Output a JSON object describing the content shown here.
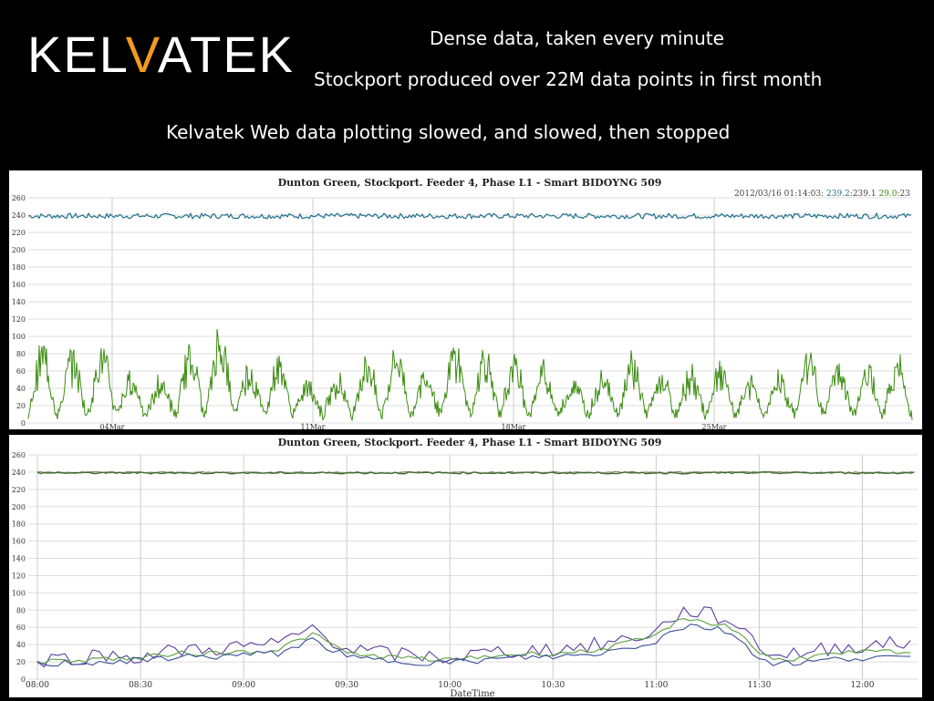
{
  "logo": {
    "prefix": "KEL",
    "accent": "V",
    "rest_a": "A",
    "suffix": "TEK",
    "accent_color": "#f39a1e"
  },
  "headlines": {
    "line1": "Dense data, taken every minute",
    "line2": "Stockport produced over 22M data points in first month",
    "line3": "Kelvatek Web data plotting slowed, and slowed, then stopped"
  },
  "chart_data": [
    {
      "type": "line",
      "title": "Dunton Green, Stockport. Feeder 4, Phase L1 - Smart BIDOYNG 509",
      "legend_text": {
        "stamp": "2012/03/16 01:14:03:",
        "v1": "239.2",
        "v2": "239.1",
        "v3": "29.0",
        "v4": "23"
      },
      "ylim": [
        0,
        260
      ],
      "yticks": [
        0,
        20,
        40,
        60,
        80,
        100,
        120,
        140,
        160,
        180,
        200,
        220,
        240,
        260
      ],
      "xticks": [
        "04Mar",
        "11Mar",
        "18Mar",
        "25Mar"
      ],
      "grid": true,
      "colors": {
        "voltage": "#1f6f8b",
        "current": "#3c8c10"
      },
      "series": [
        {
          "key": "voltage",
          "approx_level": 239,
          "noise": 3
        },
        {
          "key": "current",
          "baseline": 10,
          "daily_peaks": [
            97,
            90,
            95,
            60,
            55,
            98,
            120,
            75,
            80,
            55,
            60,
            85,
            95,
            70,
            100,
            95,
            80,
            70,
            55,
            65,
            85,
            60,
            65,
            70,
            55,
            60,
            90,
            75,
            70,
            80
          ]
        }
      ]
    },
    {
      "type": "line",
      "title": "Dunton Green, Stockport. Feeder 4, Phase L1 - Smart BIDOYNG 509",
      "xlabel": "DateTime",
      "ylim": [
        0,
        260
      ],
      "yticks": [
        0,
        20,
        40,
        60,
        80,
        100,
        120,
        140,
        160,
        180,
        200,
        220,
        240,
        260
      ],
      "xticks": [
        "08:00",
        "08:30",
        "09:00",
        "09:30",
        "10:00",
        "10:30",
        "11:00",
        "11:30",
        "12:00"
      ],
      "grid": true,
      "colors": {
        "volt_a": "#3e6b2c",
        "volt_b": "#8a8a6a",
        "purple": "#5b3fa0",
        "green": "#5aa03c",
        "blue": "#3a4f9a"
      },
      "x_minutes_range": [
        0,
        255
      ],
      "series": [
        {
          "key": "purple",
          "points": [
            [
              0,
              22
            ],
            [
              10,
              25
            ],
            [
              20,
              28
            ],
            [
              30,
              26
            ],
            [
              40,
              33
            ],
            [
              50,
              35
            ],
            [
              60,
              38
            ],
            [
              70,
              40
            ],
            [
              75,
              50
            ],
            [
              80,
              60
            ],
            [
              85,
              48
            ],
            [
              90,
              35
            ],
            [
              100,
              30
            ],
            [
              110,
              27
            ],
            [
              120,
              25
            ],
            [
              130,
              30
            ],
            [
              140,
              33
            ],
            [
              150,
              35
            ],
            [
              160,
              38
            ],
            [
              170,
              45
            ],
            [
              180,
              55
            ],
            [
              185,
              72
            ],
            [
              190,
              80
            ],
            [
              195,
              75
            ],
            [
              200,
              70
            ],
            [
              205,
              60
            ],
            [
              210,
              38
            ],
            [
              215,
              28
            ],
            [
              225,
              32
            ],
            [
              235,
              38
            ],
            [
              245,
              40
            ],
            [
              255,
              42
            ]
          ]
        },
        {
          "key": "green",
          "points": [
            [
              0,
              20
            ],
            [
              10,
              22
            ],
            [
              20,
              24
            ],
            [
              30,
              24
            ],
            [
              40,
              30
            ],
            [
              50,
              30
            ],
            [
              60,
              32
            ],
            [
              70,
              34
            ],
            [
              75,
              44
            ],
            [
              80,
              52
            ],
            [
              85,
              42
            ],
            [
              90,
              30
            ],
            [
              100,
              26
            ],
            [
              110,
              24
            ],
            [
              120,
              22
            ],
            [
              130,
              26
            ],
            [
              140,
              29
            ],
            [
              150,
              30
            ],
            [
              160,
              32
            ],
            [
              170,
              40
            ],
            [
              180,
              50
            ],
            [
              185,
              65
            ],
            [
              190,
              70
            ],
            [
              195,
              66
            ],
            [
              200,
              62
            ],
            [
              205,
              52
            ],
            [
              210,
              30
            ],
            [
              215,
              22
            ],
            [
              225,
              26
            ],
            [
              235,
              30
            ],
            [
              245,
              32
            ],
            [
              255,
              30
            ]
          ]
        },
        {
          "key": "blue",
          "points": [
            [
              0,
              17
            ],
            [
              10,
              19
            ],
            [
              20,
              20
            ],
            [
              30,
              21
            ],
            [
              40,
              26
            ],
            [
              50,
              26
            ],
            [
              60,
              28
            ],
            [
              70,
              30
            ],
            [
              75,
              38
            ],
            [
              80,
              45
            ],
            [
              85,
              36
            ],
            [
              90,
              25
            ],
            [
              100,
              22
            ],
            [
              110,
              20
            ],
            [
              120,
              19
            ],
            [
              130,
              22
            ],
            [
              140,
              25
            ],
            [
              150,
              26
            ],
            [
              160,
              28
            ],
            [
              170,
              35
            ],
            [
              180,
              44
            ],
            [
              185,
              58
            ],
            [
              190,
              62
            ],
            [
              195,
              60
            ],
            [
              200,
              56
            ],
            [
              205,
              45
            ],
            [
              210,
              24
            ],
            [
              215,
              18
            ],
            [
              225,
              20
            ],
            [
              235,
              24
            ],
            [
              245,
              26
            ],
            [
              255,
              22
            ]
          ]
        }
      ]
    }
  ]
}
